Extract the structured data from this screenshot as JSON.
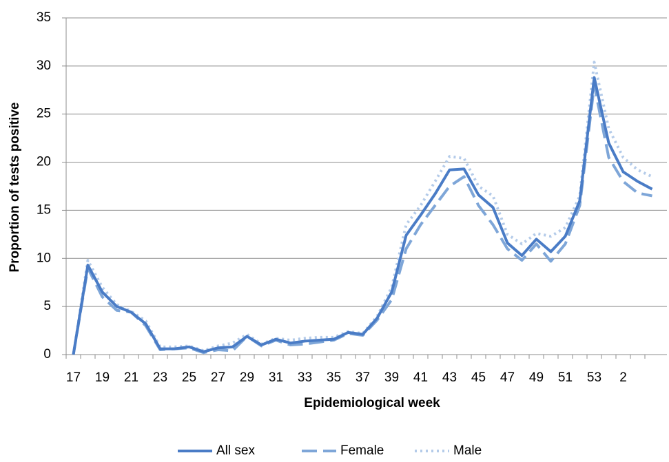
{
  "chart_data": {
    "type": "line",
    "xlabel": "Epidemiological week",
    "ylabel": "Proportion of tests positive",
    "categories": [
      "17",
      null,
      "19",
      null,
      "21",
      null,
      "23",
      null,
      "25",
      null,
      "27",
      null,
      "29",
      null,
      "31",
      null,
      "33",
      null,
      "35",
      null,
      "37",
      null,
      "39",
      null,
      "41",
      null,
      "43",
      null,
      "45",
      null,
      "47",
      null,
      "49",
      null,
      "51",
      null,
      "53",
      null,
      "2",
      null,
      null
    ],
    "series": [
      {
        "name": "All sex",
        "color": "#4a7cc6",
        "dash": "solid",
        "values": [
          0,
          9.3,
          6.5,
          5.0,
          4.4,
          3.2,
          0.6,
          0.6,
          0.8,
          0.3,
          0.7,
          0.8,
          1.9,
          1.0,
          1.6,
          1.2,
          1.4,
          1.5,
          1.6,
          2.3,
          2.1,
          3.8,
          6.5,
          12.4,
          14.5,
          16.7,
          19.2,
          19.3,
          16.6,
          15.3,
          11.6,
          10.3,
          12.0,
          10.7,
          12.3,
          16.0,
          28.8,
          22.0,
          19.0,
          18.0,
          17.2
        ]
      },
      {
        "name": "Female",
        "color": "#7ea6d8",
        "dash": "dashed",
        "values": [
          0,
          9.0,
          6.0,
          4.6,
          4.4,
          3.0,
          0.5,
          0.6,
          0.7,
          0.2,
          0.5,
          0.4,
          1.9,
          0.9,
          1.5,
          1.0,
          1.1,
          1.3,
          1.5,
          2.2,
          2.0,
          3.6,
          5.7,
          11.0,
          13.5,
          15.5,
          17.5,
          18.5,
          15.5,
          13.5,
          11.0,
          9.8,
          11.5,
          9.7,
          11.5,
          15.5,
          28.0,
          20.5,
          18.0,
          16.8,
          16.5
        ]
      },
      {
        "name": "Male",
        "color": "#b4cbe9",
        "dash": "dotted",
        "values": [
          0,
          9.8,
          7.0,
          5.2,
          4.5,
          3.5,
          0.8,
          0.8,
          0.9,
          0.4,
          0.9,
          1.2,
          2.1,
          1.1,
          1.7,
          1.5,
          1.7,
          1.8,
          1.8,
          2.4,
          2.2,
          4.0,
          7.0,
          13.5,
          15.5,
          18.0,
          20.6,
          20.4,
          17.5,
          16.5,
          12.5,
          11.5,
          12.6,
          12.3,
          13.2,
          16.5,
          30.4,
          23.5,
          20.5,
          19.2,
          18.5
        ]
      }
    ],
    "ylim": [
      0,
      35
    ],
    "yticks": [
      0,
      5,
      10,
      15,
      20,
      25,
      30,
      35
    ],
    "grid": true,
    "legend": "bottom"
  }
}
